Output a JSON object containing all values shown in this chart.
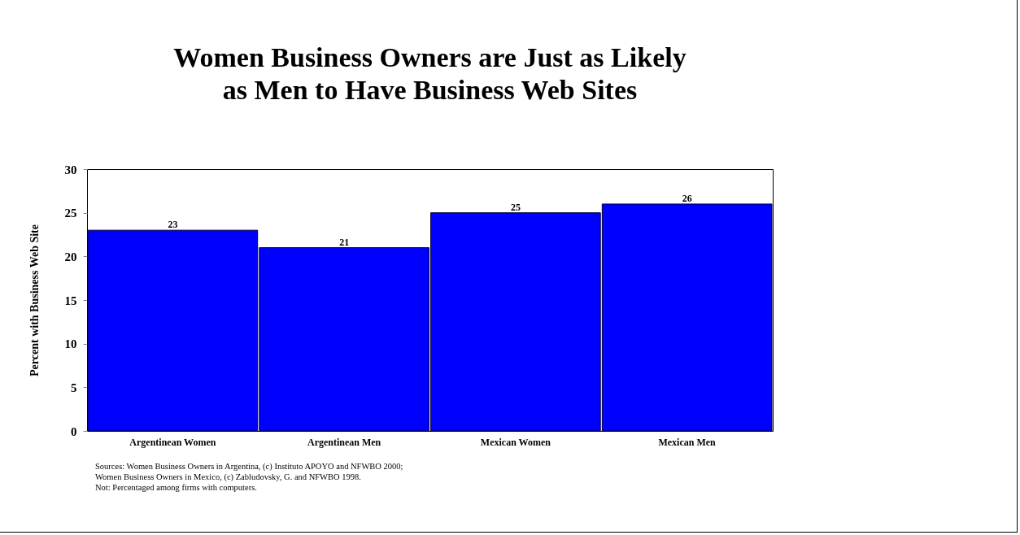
{
  "chart_data": {
    "type": "bar",
    "title": [
      "Women Business Owners are Just as Likely",
      "as Men to Have Business Web Sites"
    ],
    "ylabel": "Percent with Business Web Site",
    "categories": [
      "Argentinean Women",
      "Argentinean Men",
      "Mexican Women",
      "Mexican Men"
    ],
    "values": [
      23,
      21,
      25,
      26
    ],
    "color": "#0000ff",
    "ylim": [
      0,
      30
    ],
    "yticks": [
      0,
      5,
      10,
      15,
      20,
      25,
      30
    ],
    "grid": false,
    "data_labels": true,
    "annotations": [
      "Sources: Women Business Owners in Argentina, (c) Instituto APOYO and NFWBO 2000;",
      "Women Business Owners in Mexico, (c) Zabludovsky, G. and NFWBO 1998.",
      "Not: Percentaged among firms with computers."
    ]
  }
}
